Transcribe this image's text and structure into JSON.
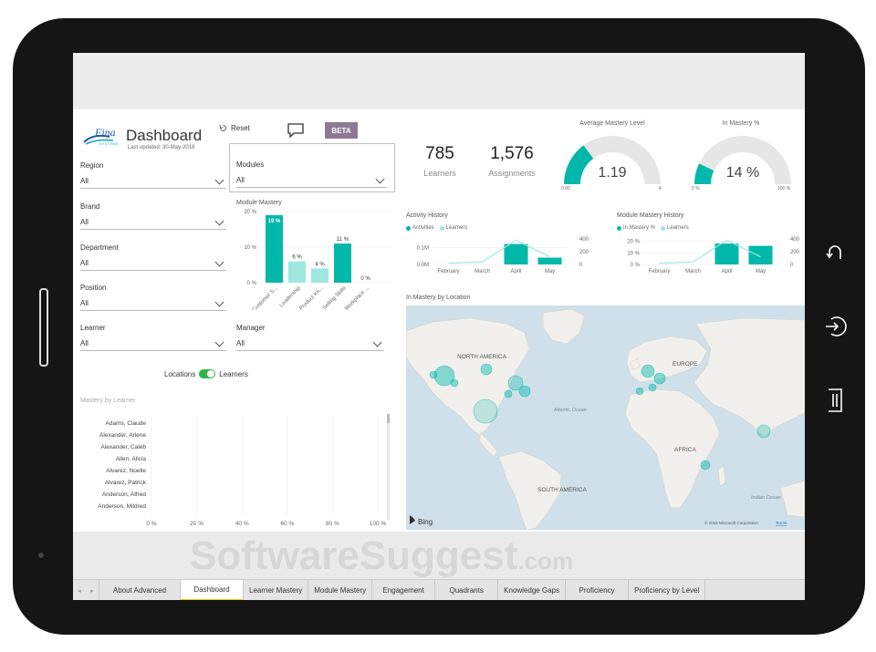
{
  "header": {
    "logo_text": "Fina",
    "logo_sub": "SYSTEMS",
    "title": "Dashboard",
    "last_updated": "Last updated: 30-May-2018",
    "reset_label": "Reset",
    "beta_label": "BETA"
  },
  "filters": {
    "region": {
      "label": "Region",
      "value": "All"
    },
    "brand": {
      "label": "Brand",
      "value": "All"
    },
    "department": {
      "label": "Department",
      "value": "All"
    },
    "position": {
      "label": "Position",
      "value": "All"
    },
    "learner": {
      "label": "Learner",
      "value": "All"
    },
    "modules": {
      "label": "Modules",
      "value": "All"
    },
    "manager": {
      "label": "Manager",
      "value": "All"
    }
  },
  "toggle": {
    "left": "Locations",
    "right": "Learners"
  },
  "kpis": {
    "learners_value": "785",
    "learners_label": "Learners",
    "assignments_value": "1,576",
    "assignments_label": "Assignments"
  },
  "gauges": [
    {
      "title": "Average Mastery Level",
      "value_text": "1.19",
      "min": "0.00",
      "max": "4",
      "fraction": 0.2975
    },
    {
      "title": "In Mastery %",
      "value_text": "14 %",
      "min": "0 %",
      "max": "100 %",
      "fraction": 0.14
    }
  ],
  "colors": {
    "accent": "#01b8aa",
    "accent_light": "#9ee7e1",
    "gauge_bg": "#e6e6e6",
    "map_water": "#cfe0ea",
    "map_land": "#f2f0ec"
  },
  "module_mastery": {
    "title": "Module Mastery",
    "y_ticks": [
      "20 %",
      "10 %",
      "0 %"
    ],
    "bars": [
      {
        "label": "Customer S...",
        "value": 19,
        "text": "19 %",
        "highlight": true
      },
      {
        "label": "Leadership",
        "value": 6,
        "text": "6 %",
        "highlight": false
      },
      {
        "label": "Product Kn...",
        "value": 4,
        "text": "4 %",
        "highlight": false
      },
      {
        "label": "Selling Skills",
        "value": 11,
        "text": "11 %",
        "highlight": true
      },
      {
        "label": "Workplace ...",
        "value": 0,
        "text": "0 %",
        "highlight": false
      }
    ]
  },
  "activity_history": {
    "title": "Activity History",
    "legend": [
      "Activities",
      "Learners"
    ],
    "y_left": [
      "0.1M",
      "0.0M"
    ],
    "y_right": [
      "400",
      "200",
      "0"
    ],
    "months": [
      "February",
      "March",
      "April",
      "May"
    ],
    "activities": [
      0,
      0,
      0.12,
      0.04
    ],
    "learners": [
      20,
      40,
      380,
      120
    ]
  },
  "module_mastery_history": {
    "title": "Module Mastery History",
    "legend": [
      "In Mastery %",
      "Learners"
    ],
    "y_left": [
      "20 %",
      "10 %",
      "0 %"
    ],
    "y_right": [
      "400",
      "200",
      "0"
    ],
    "months": [
      "February",
      "March",
      "April",
      "May"
    ],
    "mastery": [
      0,
      0,
      18,
      16
    ],
    "learners": [
      20,
      40,
      380,
      120
    ]
  },
  "map": {
    "title": "In Mastery by Location",
    "labels": {
      "north_america": "NORTH AMERICA",
      "europe": "EUROPE",
      "africa": "AFRICA",
      "south_america": "SOUTH AMERICA",
      "atlantic": "Atlantic Ocean",
      "indian": "Indian Ocean"
    },
    "bing": "Bing",
    "copyright": "© 2019 Microsoft Corporation",
    "terms": "Terms"
  },
  "mastery_by_learner": {
    "title": "Mastery by Learner",
    "names": [
      "Adams, Claude",
      "Alexander, Arlene",
      "Alexander, Caleb",
      "Allen, Alicia",
      "Alvarez, Noelle",
      "Alvarez, Patrick",
      "Anderson, Alfred",
      "Anderson, Mildred"
    ],
    "x_ticks": [
      "0 %",
      "20 %",
      "40 %",
      "60 %",
      "80 %",
      "100 %"
    ]
  },
  "tabs": {
    "nav_prev": "◂",
    "nav_next": "▸",
    "items": [
      "About Advanced",
      "Dashboard",
      "Learner Mastery",
      "Module Mastery",
      "Engagement",
      "Quadrants",
      "Knowledge Gaps",
      "Proficiency",
      "Proficiency by Level"
    ],
    "active_index": 1
  },
  "watermark": {
    "main": "SoftwareSuggest",
    "suffix": ".com"
  }
}
